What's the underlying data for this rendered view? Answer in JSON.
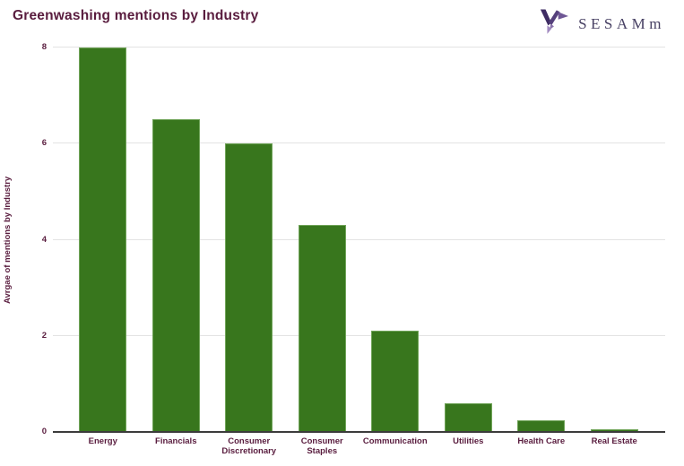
{
  "header": {
    "logo_text": "SESAMm",
    "logo_icon": "origami-hummingbird-icon",
    "logo_text_color": "#474063",
    "logo_icon_colors": [
      "#3e2c63",
      "#55407c",
      "#6f5795",
      "#a18ac0"
    ]
  },
  "chart_data": {
    "type": "bar",
    "title": "Greenwashing mentions by Industry",
    "title_color": "#591c3e",
    "categories": [
      "Energy",
      "Financials",
      "Consumer Discretionary",
      "Consumer Staples",
      "Communication",
      "Utilities",
      "Health Care",
      "Real Estate"
    ],
    "values": [
      8.0,
      6.5,
      6.0,
      4.3,
      2.1,
      0.6,
      0.25,
      0.05
    ],
    "xlabel": "",
    "ylabel": "Avrgae of mentions by Industry",
    "ylim": [
      0,
      8
    ],
    "yticks": [
      0,
      2,
      4,
      6,
      8
    ],
    "grid": "horizontal-gridlines-on",
    "legend": "none",
    "bar_color": "#38761d",
    "axis_label_color": "#591c3e",
    "gridline_color": "#e3e3e3",
    "baseline_color": "#3c3c3c"
  }
}
